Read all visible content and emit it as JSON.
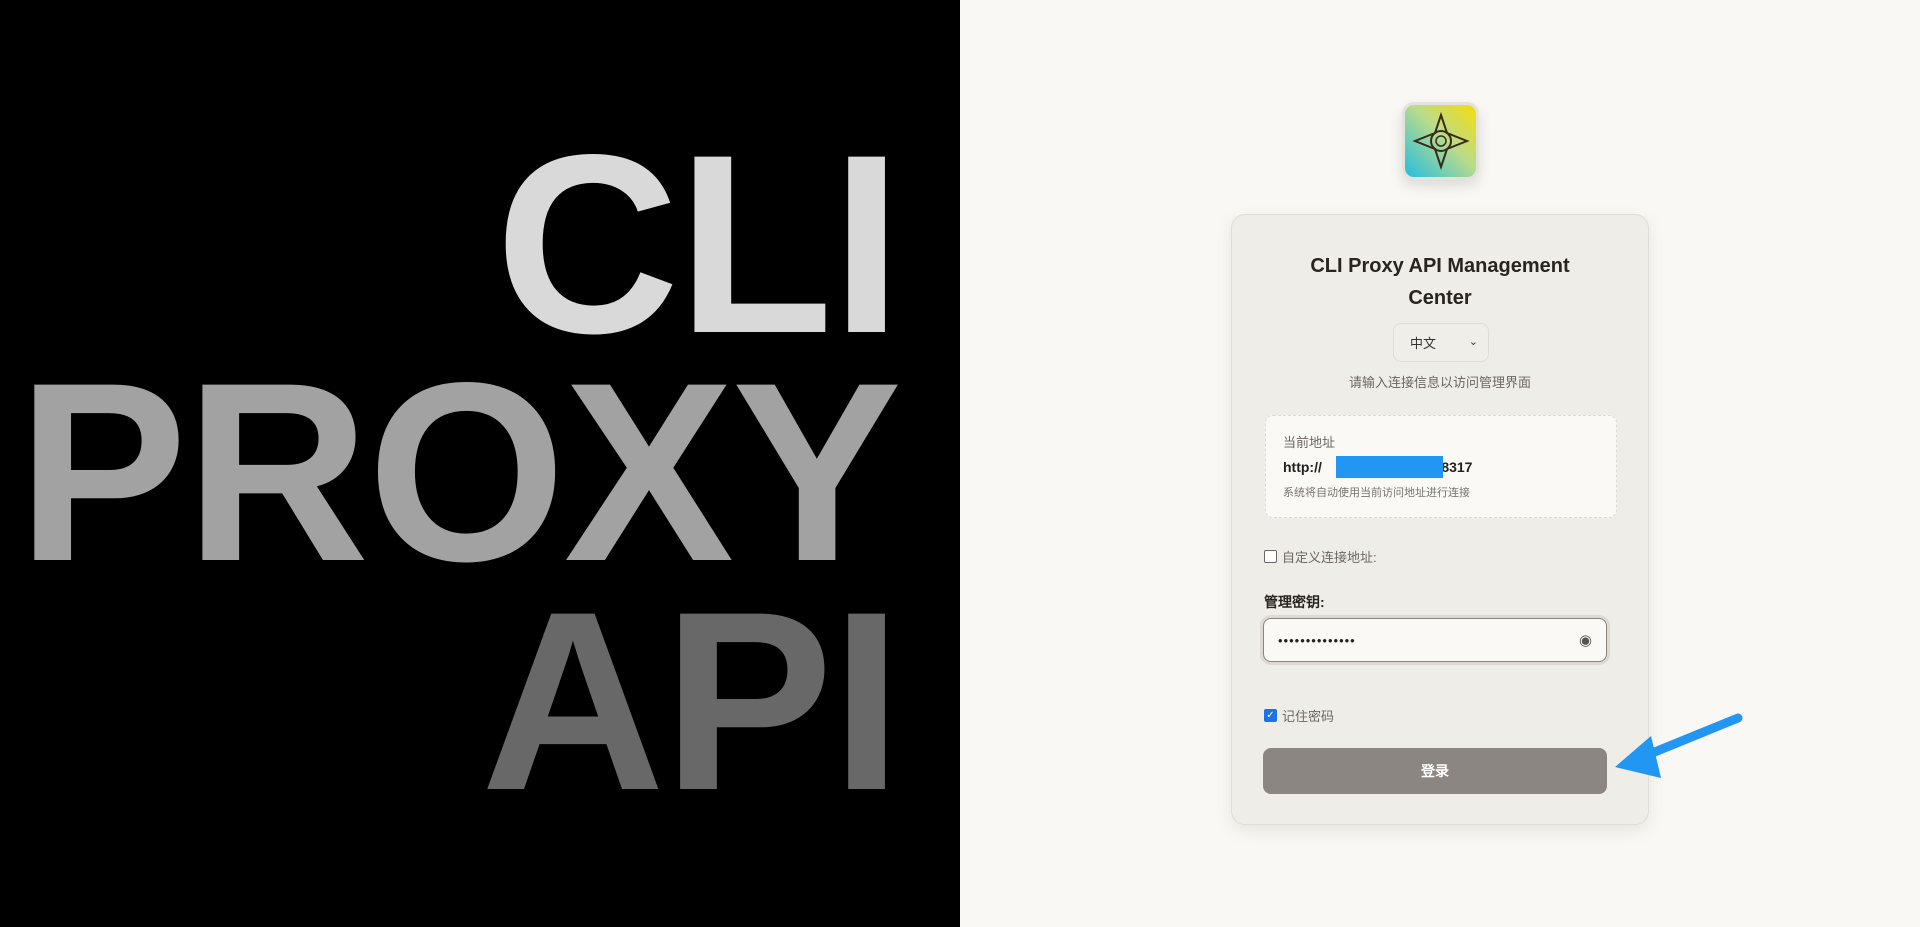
{
  "hero": {
    "line1": "CLI",
    "line2": "PROXY",
    "line3": "API"
  },
  "login": {
    "title": "CLI Proxy API Management Center",
    "language": "中文",
    "subtitle": "请输入连接信息以访问管理界面",
    "current_address_label": "当前地址",
    "current_address_prefix": "http://",
    "current_address_suffix": "1:8317",
    "current_address_note": "系统将自动使用当前访问地址进行连接",
    "custom_address_label": "自定义连接地址:",
    "custom_address_checked": false,
    "key_label": "管理密钥:",
    "key_value": "••••••••••••••",
    "remember_label": "记住密码",
    "remember_checked": true,
    "submit_label": "登录"
  },
  "colors": {
    "annotation_arrow": "#2196F3",
    "button": "#8b8681"
  }
}
